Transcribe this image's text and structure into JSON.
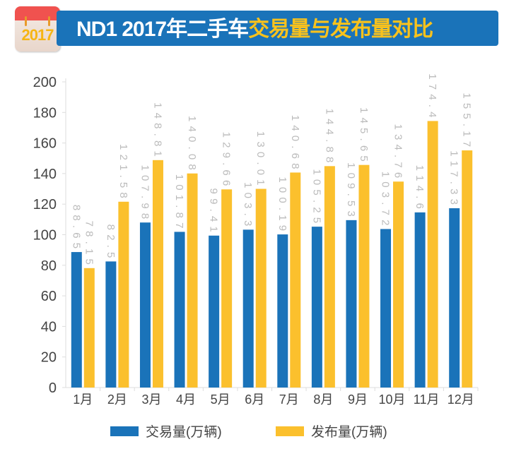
{
  "header": {
    "badge_year": "2017",
    "title_white": "ND1 2017年二手车",
    "title_yellow": "交易量与发布量对比"
  },
  "chart_data": {
    "type": "bar",
    "categories": [
      "1月",
      "2月",
      "3月",
      "4月",
      "5月",
      "6月",
      "7月",
      "8月",
      "9月",
      "10月",
      "11月",
      "12月"
    ],
    "series": [
      {
        "name": "交易量(万辆)",
        "color": "#1a73b9",
        "values": [
          88.65,
          82.5,
          107.98,
          101.87,
          99.41,
          103.3,
          100.19,
          105.25,
          109.53,
          103.72,
          114.6,
          117.33
        ]
      },
      {
        "name": "发布量(万辆)",
        "color": "#fbc02d",
        "values": [
          78.15,
          121.58,
          148.81,
          140.08,
          129.66,
          130.01,
          140.68,
          144.88,
          145.65,
          134.76,
          174.4,
          155.17
        ]
      }
    ],
    "ylim": [
      0,
      200
    ],
    "yticks": [
      0,
      20,
      40,
      60,
      80,
      100,
      120,
      140,
      160,
      180,
      200
    ],
    "grid": false,
    "legend": "bottom",
    "data_labels": true
  }
}
